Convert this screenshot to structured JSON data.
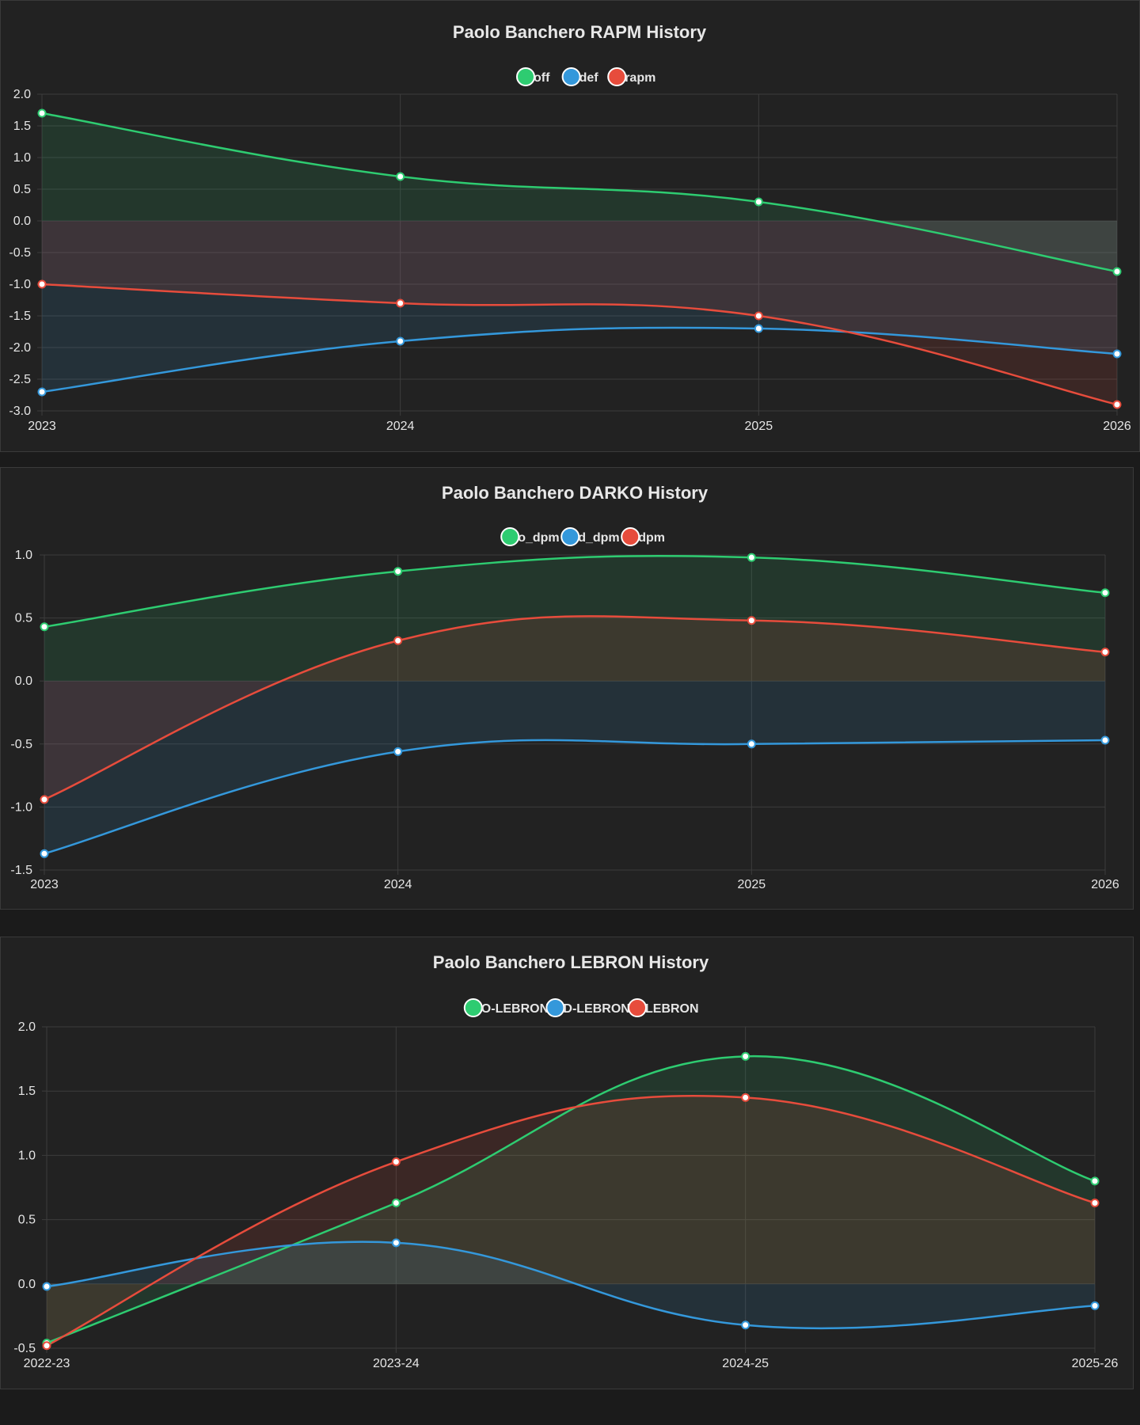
{
  "colors": {
    "off": "#2ecc71",
    "def": "#3498db",
    "total": "#e74c3c",
    "background": "#222222",
    "grid": "#3c3c3c",
    "text": "#e6e6e6"
  },
  "chart_data": [
    {
      "type": "line",
      "title": "Paolo Banchero  RAPM History",
      "categories": [
        "2023",
        "2024",
        "2025",
        "2026"
      ],
      "ylim": [
        -3.0,
        2.0
      ],
      "yticks": [
        2.0,
        1.5,
        1.0,
        0.5,
        0.0,
        -0.5,
        -1.0,
        -1.5,
        -2.0,
        -2.5,
        -3.0
      ],
      "fill": "origin",
      "legend_position": "top-center",
      "series": [
        {
          "name": "off",
          "color_key": "off",
          "values": [
            1.7,
            0.7,
            0.3,
            -0.8
          ]
        },
        {
          "name": "def",
          "color_key": "def",
          "values": [
            -2.7,
            -1.9,
            -1.7,
            -2.1
          ]
        },
        {
          "name": "rapm",
          "color_key": "total",
          "values": [
            -1.0,
            -1.3,
            -1.5,
            -2.9
          ]
        }
      ]
    },
    {
      "type": "line",
      "title": "Paolo Banchero  DARKO History",
      "categories": [
        "2023",
        "2024",
        "2025",
        "2026"
      ],
      "ylim": [
        -1.5,
        1.0
      ],
      "yticks": [
        1.0,
        0.5,
        0.0,
        -0.5,
        -1.0,
        -1.5
      ],
      "fill": "origin",
      "legend_position": "top-center",
      "series": [
        {
          "name": "o_dpm",
          "color_key": "off",
          "values": [
            0.43,
            0.87,
            0.98,
            0.7
          ]
        },
        {
          "name": "d_dpm",
          "color_key": "def",
          "values": [
            -1.37,
            -0.56,
            -0.5,
            -0.47
          ]
        },
        {
          "name": "dpm",
          "color_key": "total",
          "values": [
            -0.94,
            0.32,
            0.48,
            0.23
          ]
        }
      ]
    },
    {
      "type": "line",
      "title": "Paolo Banchero  LEBRON History",
      "categories": [
        "2022-23",
        "2023-24",
        "2024-25",
        "2025-26"
      ],
      "ylim": [
        -0.5,
        2.0
      ],
      "yticks": [
        2.0,
        1.5,
        1.0,
        0.5,
        0.0,
        -0.5
      ],
      "fill": "origin",
      "legend_position": "top-center",
      "series": [
        {
          "name": "O-LEBRON",
          "color_key": "off",
          "values": [
            -0.46,
            0.63,
            1.77,
            0.8
          ]
        },
        {
          "name": "D-LEBRON",
          "color_key": "def",
          "values": [
            -0.02,
            0.32,
            -0.32,
            -0.17
          ]
        },
        {
          "name": "LEBRON",
          "color_key": "total",
          "values": [
            -0.48,
            0.95,
            1.45,
            0.63
          ]
        }
      ]
    }
  ]
}
